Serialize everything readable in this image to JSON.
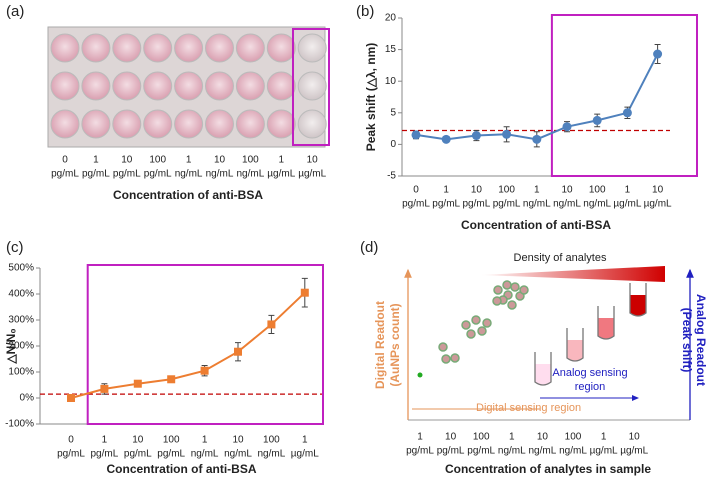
{
  "chart_data": [
    {
      "type": "line",
      "panel_label": "(b)",
      "x_label": "Concentration of anti-BSA",
      "y_label": "Peak shift (△λ, nm)",
      "categories": [
        "0",
        "1",
        "10",
        "100",
        "1",
        "10",
        "100",
        "1",
        "10"
      ],
      "category_units": [
        "pg/mL",
        "pg/mL",
        "pg/mL",
        "pg/mL",
        "ng/mL",
        "ng/mL",
        "ng/mL",
        "µg/mL",
        "µg/mL"
      ],
      "values": [
        1.5,
        0.8,
        1.4,
        1.6,
        0.8,
        2.8,
        3.8,
        5.0,
        14.3
      ],
      "errors": [
        0.6,
        0.4,
        0.8,
        1.2,
        1.2,
        0.8,
        1.0,
        0.9,
        1.5
      ],
      "color": "#4f81bd",
      "threshold": 2.2,
      "highlight_from": 5,
      "ylim": [
        -5,
        20
      ],
      "yticks": [
        -5,
        0,
        5,
        10,
        15,
        20
      ]
    },
    {
      "type": "line",
      "panel_label": "(c)",
      "x_label": "Concentration of anti-BSA",
      "y_label": "△N/N₀",
      "categories": [
        "0",
        "1",
        "10",
        "100",
        "1",
        "10",
        "100",
        "1"
      ],
      "category_units": [
        "pg/mL",
        "pg/mL",
        "pg/mL",
        "pg/mL",
        "ng/mL",
        "ng/mL",
        "ng/mL",
        "µg/mL"
      ],
      "values": [
        0,
        35,
        55,
        72,
        105,
        178,
        283,
        405
      ],
      "errors": [
        10,
        20,
        10,
        10,
        20,
        35,
        35,
        55
      ],
      "color": "#ed7d31",
      "threshold": 15,
      "highlight_from": 1,
      "ylim": [
        -100,
        500
      ],
      "yticks": [
        {
          "value": -100,
          "label": "-100%"
        },
        {
          "value": 0,
          "label": "0%"
        },
        {
          "value": 100,
          "label": "100%"
        },
        {
          "value": 200,
          "label": "200%"
        },
        {
          "value": 300,
          "label": "300%"
        },
        {
          "value": 400,
          "label": "400%"
        },
        {
          "value": 500,
          "label": "500%"
        }
      ]
    }
  ],
  "panel_a": {
    "panel_label": "(a)",
    "x_label": "Concentration of anti-BSA",
    "categories": [
      "0",
      "1",
      "10",
      "100",
      "1",
      "10",
      "100",
      "1",
      "10"
    ],
    "category_units": [
      "pg/mL",
      "pg/mL",
      "pg/mL",
      "pg/mL",
      "ng/mL",
      "ng/mL",
      "ng/mL",
      "µg/mL",
      "µg/mL"
    ]
  },
  "panel_d": {
    "panel_label": "(d)",
    "title": "Density of analytes",
    "left_label": [
      "Digital Readout",
      "(AuNPs count)"
    ],
    "right_label": [
      "Analog Readout",
      "(Peak shift)"
    ],
    "analog_region": [
      "Analog sensing",
      "region"
    ],
    "digital_region": "Digital sensing region",
    "x_label": "Concentration of analytes in sample",
    "categories": [
      "1",
      "10",
      "100",
      "1",
      "10",
      "100",
      "1",
      "10"
    ],
    "category_units": [
      "pg/mL",
      "pg/mL",
      "pg/mL",
      "ng/mL",
      "ng/mL",
      "ng/mL",
      "µg/mL",
      "µg/mL"
    ]
  }
}
